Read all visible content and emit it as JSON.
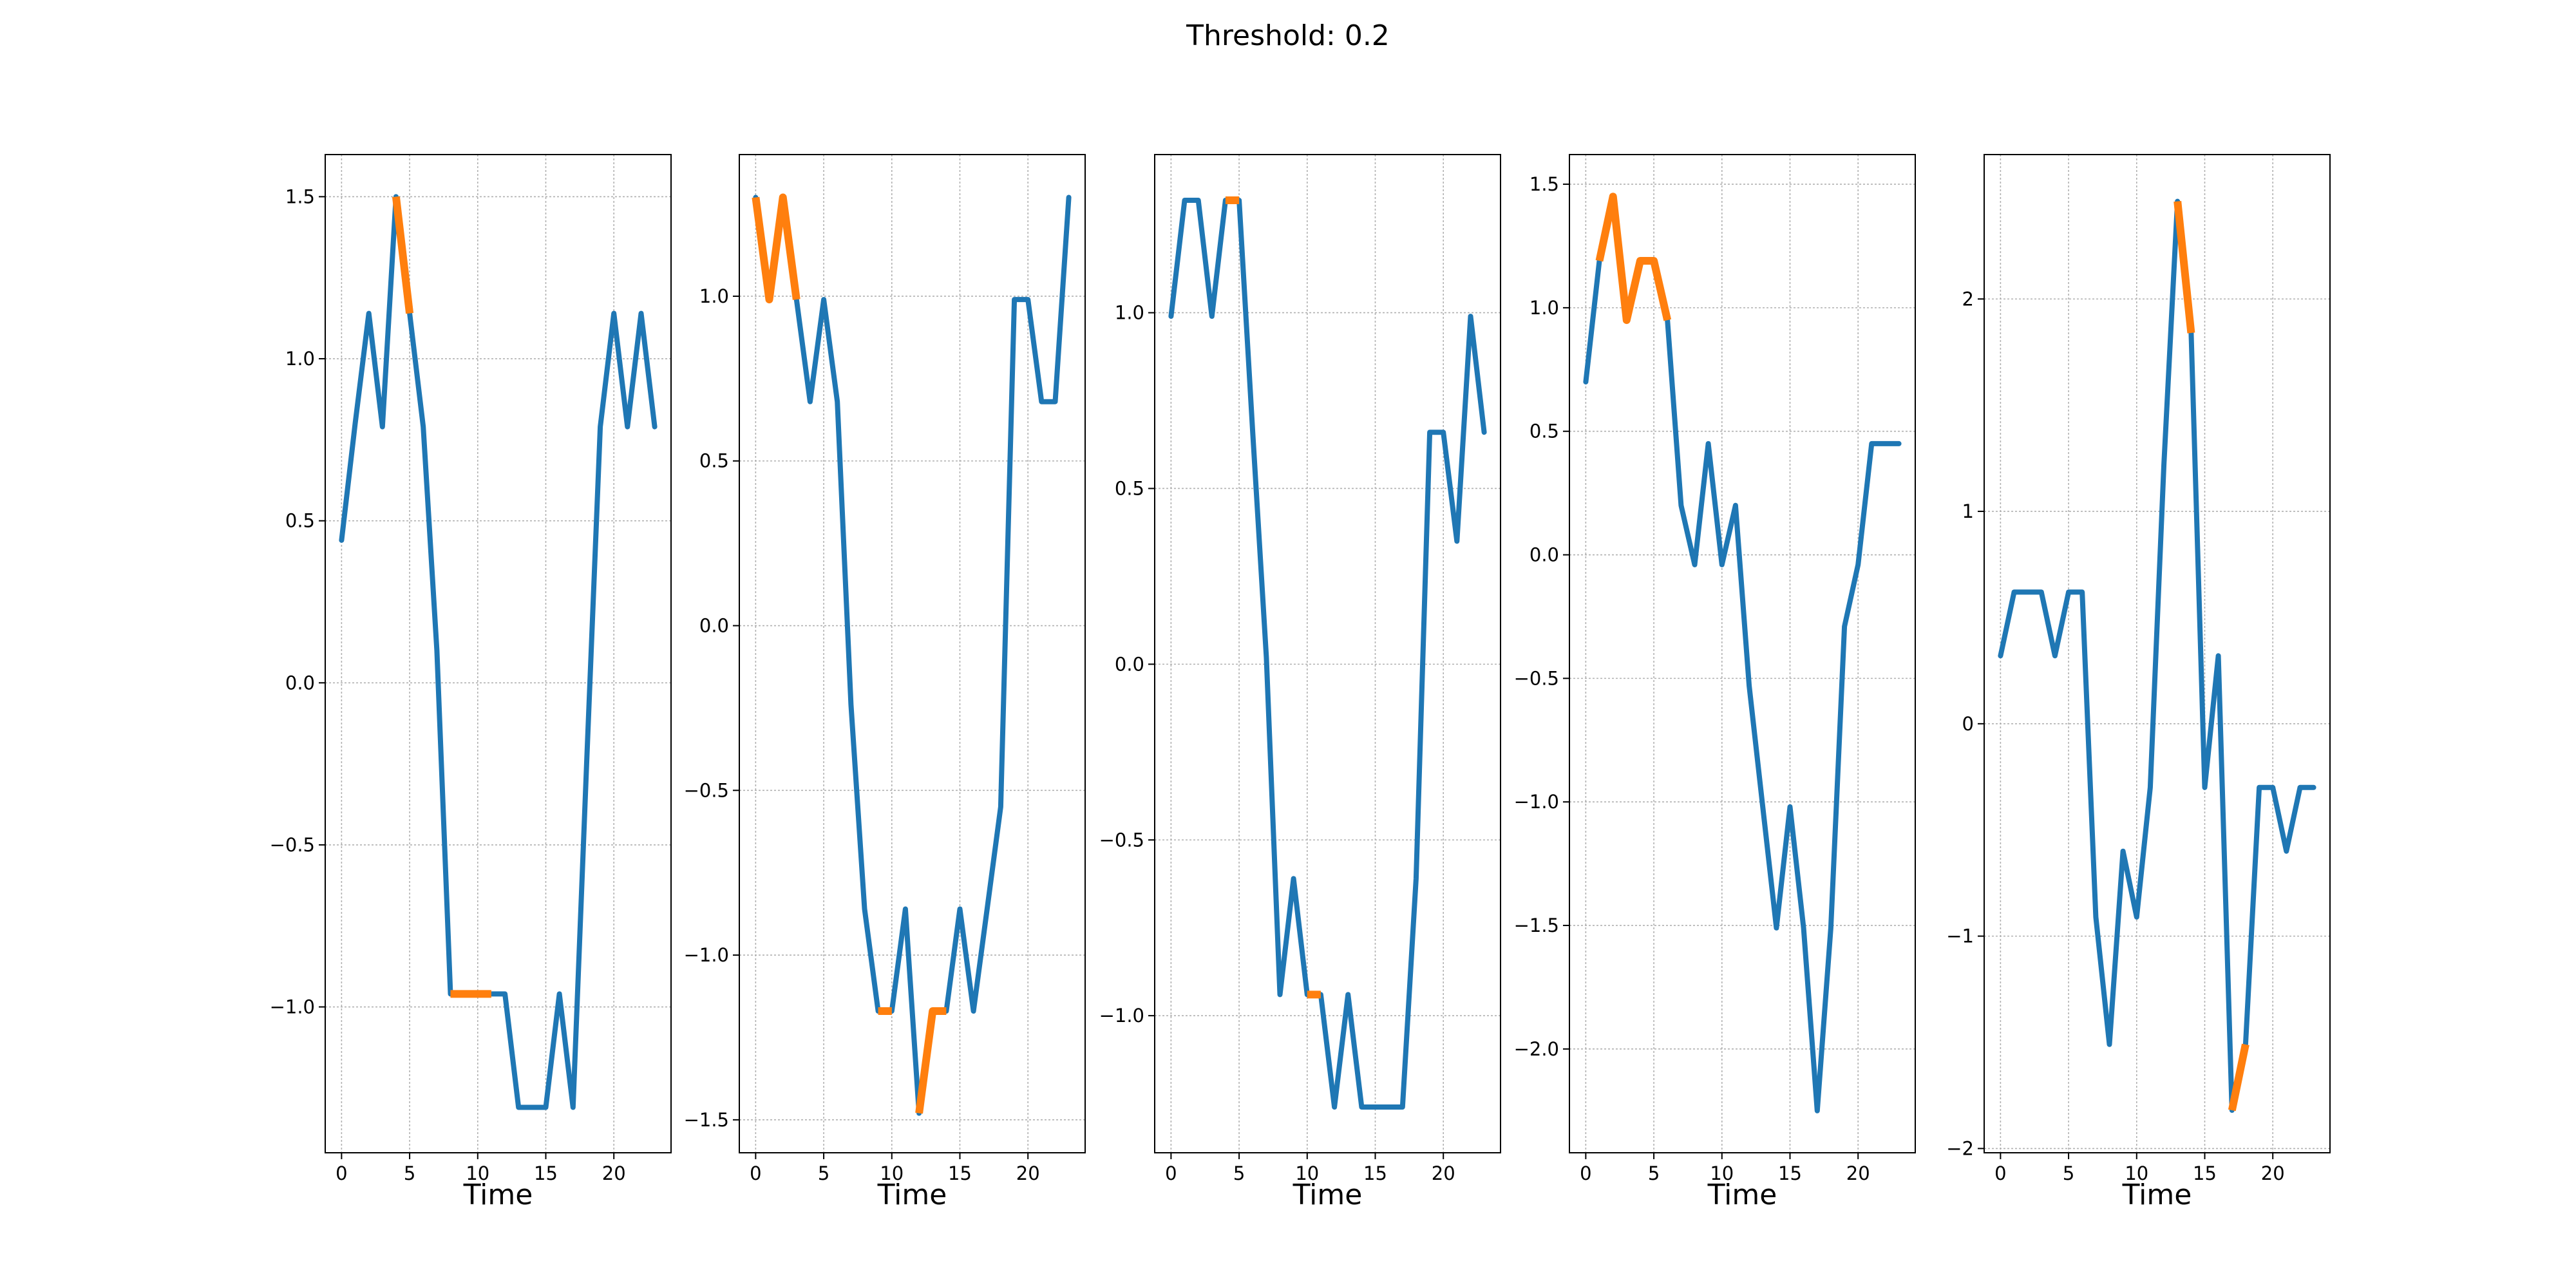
{
  "figure": {
    "title": "Threshold: 0.2"
  },
  "colors": {
    "base": "#1f77b4",
    "highlight": "#ff7f0e"
  },
  "chart_data": [
    {
      "type": "line",
      "xlabel": "Time",
      "xlim": [
        -1.2,
        24.2
      ],
      "ylim": [
        -1.45,
        1.63
      ],
      "x_ticks": [
        0,
        5,
        10,
        15,
        20
      ],
      "y_ticks": [
        -1.0,
        -0.5,
        0.0,
        0.5,
        1.0,
        1.5
      ],
      "grid": true,
      "x": [
        0,
        1,
        2,
        3,
        4,
        5,
        6,
        7,
        8,
        9,
        10,
        11,
        12,
        13,
        14,
        15,
        16,
        17,
        18,
        19,
        20,
        21,
        22,
        23
      ],
      "values": [
        0.44,
        0.8,
        1.14,
        0.79,
        1.5,
        1.14,
        0.79,
        0.1,
        -0.96,
        -0.96,
        -0.96,
        -0.96,
        -0.96,
        -1.31,
        -1.31,
        -1.31,
        -0.96,
        -1.31,
        -0.25,
        0.79,
        1.14,
        0.79,
        1.14,
        0.79
      ],
      "highlight_segments": [
        [
          4,
          5
        ],
        [
          8,
          11
        ]
      ]
    },
    {
      "type": "line",
      "xlabel": "Time",
      "xlim": [
        -1.2,
        24.2
      ],
      "ylim": [
        -1.6,
        1.43
      ],
      "x_ticks": [
        0,
        5,
        10,
        15,
        20
      ],
      "y_ticks": [
        -1.5,
        -1.0,
        -0.5,
        0.0,
        0.5,
        1.0
      ],
      "grid": true,
      "x": [
        0,
        1,
        2,
        3,
        4,
        5,
        6,
        7,
        8,
        9,
        10,
        11,
        12,
        13,
        14,
        15,
        16,
        17,
        18,
        19,
        20,
        21,
        22,
        23
      ],
      "values": [
        1.3,
        0.99,
        1.3,
        0.99,
        0.68,
        0.99,
        0.68,
        -0.24,
        -0.86,
        -1.17,
        -1.17,
        -0.86,
        -1.48,
        -1.17,
        -1.17,
        -0.86,
        -1.17,
        -0.86,
        -0.55,
        0.99,
        0.99,
        0.68,
        0.68,
        1.3
      ],
      "highlight_segments": [
        [
          0,
          3
        ],
        [
          9,
          10
        ],
        [
          12,
          14
        ]
      ]
    },
    {
      "type": "line",
      "xlabel": "Time",
      "xlim": [
        -1.2,
        24.2
      ],
      "ylim": [
        -1.39,
        1.45
      ],
      "x_ticks": [
        0,
        5,
        10,
        15,
        20
      ],
      "y_ticks": [
        -1.0,
        -0.5,
        0.0,
        0.5,
        1.0
      ],
      "grid": true,
      "x": [
        0,
        1,
        2,
        3,
        4,
        5,
        6,
        7,
        8,
        9,
        10,
        11,
        12,
        13,
        14,
        15,
        16,
        17,
        18,
        19,
        20,
        21,
        22,
        23
      ],
      "values": [
        0.99,
        1.32,
        1.32,
        0.99,
        1.32,
        1.32,
        0.66,
        0.02,
        -0.94,
        -0.61,
        -0.94,
        -0.94,
        -1.26,
        -0.94,
        -1.26,
        -1.26,
        -1.26,
        -1.26,
        -0.61,
        0.66,
        0.66,
        0.35,
        0.99,
        0.66
      ],
      "highlight_segments": [
        [
          4,
          5
        ],
        [
          10,
          11
        ]
      ]
    },
    {
      "type": "line",
      "xlabel": "Time",
      "xlim": [
        -1.2,
        24.2
      ],
      "ylim": [
        -2.42,
        1.62
      ],
      "x_ticks": [
        0,
        5,
        10,
        15,
        20
      ],
      "y_ticks": [
        -2.0,
        -1.5,
        -1.0,
        -0.5,
        0.0,
        0.5,
        1.0,
        1.5
      ],
      "grid": true,
      "x": [
        0,
        1,
        2,
        3,
        4,
        5,
        6,
        7,
        8,
        9,
        10,
        11,
        12,
        13,
        14,
        15,
        16,
        17,
        18,
        19,
        20,
        21,
        22,
        23
      ],
      "values": [
        0.7,
        1.19,
        1.45,
        0.95,
        1.19,
        1.19,
        0.95,
        0.2,
        -0.04,
        0.45,
        -0.04,
        0.2,
        -0.53,
        -1.02,
        -1.51,
        -1.02,
        -1.51,
        -2.25,
        -1.51,
        -0.29,
        -0.04,
        0.45,
        0.45,
        0.45
      ],
      "highlight_segments": [
        [
          1,
          6
        ]
      ]
    },
    {
      "type": "line",
      "xlabel": "Time",
      "xlim": [
        -1.2,
        24.2
      ],
      "ylim": [
        -2.02,
        2.68
      ],
      "x_ticks": [
        0,
        5,
        10,
        15,
        20
      ],
      "y_ticks": [
        -2,
        -1,
        0,
        1,
        2
      ],
      "grid": true,
      "x": [
        0,
        1,
        2,
        3,
        4,
        5,
        6,
        7,
        8,
        9,
        10,
        11,
        12,
        13,
        14,
        15,
        16,
        17,
        18,
        19,
        20,
        21,
        22,
        23
      ],
      "values": [
        0.32,
        0.62,
        0.62,
        0.62,
        0.32,
        0.62,
        0.62,
        -0.91,
        -1.51,
        -0.6,
        -0.91,
        -0.3,
        1.22,
        2.46,
        1.84,
        -0.3,
        0.32,
        -1.82,
        -1.51,
        -0.3,
        -0.3,
        -0.6,
        -0.3,
        -0.3
      ],
      "highlight_segments": [
        [
          13,
          14
        ],
        [
          17,
          18
        ]
      ]
    }
  ]
}
